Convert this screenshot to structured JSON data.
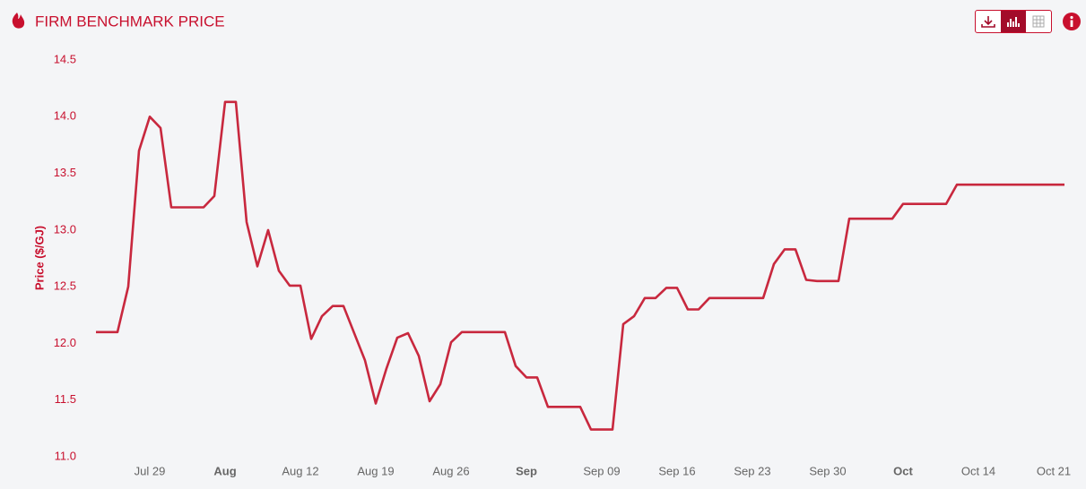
{
  "chart_data": {
    "type": "line",
    "title": "FIRM BENCHMARK PRICE",
    "y_label": "Price ($/GJ)",
    "x": [
      "Jul 24",
      "Jul 26",
      "Jul 27",
      "Jul 28",
      "Jul 29",
      "Jul 30",
      "Jul 31",
      "Aug 03",
      "Aug 04",
      "Aug 05",
      "Aug 06",
      "Aug 07",
      "Aug 08",
      "Aug 09",
      "Aug 10",
      "Aug 11",
      "Aug 12",
      "Aug 13",
      "Aug 14",
      "Aug 15",
      "Aug 16",
      "Aug 18",
      "Aug 19",
      "Aug 20",
      "Aug 21",
      "Aug 22",
      "Aug 23",
      "Aug 24",
      "Aug 25",
      "Aug 26",
      "Aug 27",
      "Aug 31",
      "Sep 01",
      "Sep 02",
      "Sep 03",
      "Sep 04",
      "Sep 07",
      "Sep 08",
      "Sep 10",
      "Sep 11",
      "Sep 12",
      "Sep 13",
      "Sep 14",
      "Sep 15",
      "Sep 16",
      "Sep 17",
      "Sep 18",
      "Sep 19",
      "Sep 24",
      "Sep 25",
      "Sep 26",
      "Sep 27",
      "Sep 28",
      "Sep 29",
      "Oct 01",
      "Oct 02",
      "Oct 06",
      "Oct 07",
      "Oct 11",
      "Oct 12",
      "Oct 22"
    ],
    "series": [
      {
        "name": "Firm Benchmark Price",
        "color": "#c8283e",
        "values": [
          12.1,
          12.1,
          12.5,
          13.7,
          14.0,
          13.9,
          13.2,
          13.2,
          13.3,
          14.13,
          14.13,
          13.07,
          12.68,
          13.0,
          12.64,
          12.51,
          12.51,
          12.04,
          12.24,
          12.33,
          12.33,
          11.85,
          11.47,
          11.78,
          12.05,
          12.09,
          11.89,
          11.49,
          11.64,
          12.01,
          12.1,
          12.1,
          11.8,
          11.7,
          11.7,
          11.44,
          11.44,
          11.24,
          11.24,
          12.17,
          12.24,
          12.4,
          12.4,
          12.49,
          12.49,
          12.3,
          12.3,
          12.4,
          12.4,
          12.7,
          12.83,
          12.83,
          12.56,
          12.55,
          12.55,
          13.1,
          13.1,
          13.23,
          13.23,
          13.4,
          13.4
        ]
      }
    ],
    "xlim": [
      "Jul 23",
      "Oct 23"
    ],
    "xticks": [
      "Jul 29",
      {
        "value": "Aug 05",
        "label": "Aug"
      },
      "Aug 12",
      "Aug 19",
      "Aug 26",
      {
        "value": "Sep 02",
        "label": "Sep"
      },
      "Sep 09",
      "Sep 16",
      "Sep 23",
      "Sep 30",
      {
        "value": "Oct 07",
        "label": "Oct"
      },
      "Oct 14",
      "Oct 21"
    ],
    "ylim": [
      11,
      14.5
    ],
    "yticks": [
      {
        "value": 11,
        "label": "11.0"
      },
      11.5,
      {
        "value": 12,
        "label": "12.0"
      },
      12.5,
      {
        "value": 13,
        "label": "13.0"
      },
      13.5,
      {
        "value": 14,
        "label": "14.0"
      },
      14.5
    ],
    "grid": false
  }
}
